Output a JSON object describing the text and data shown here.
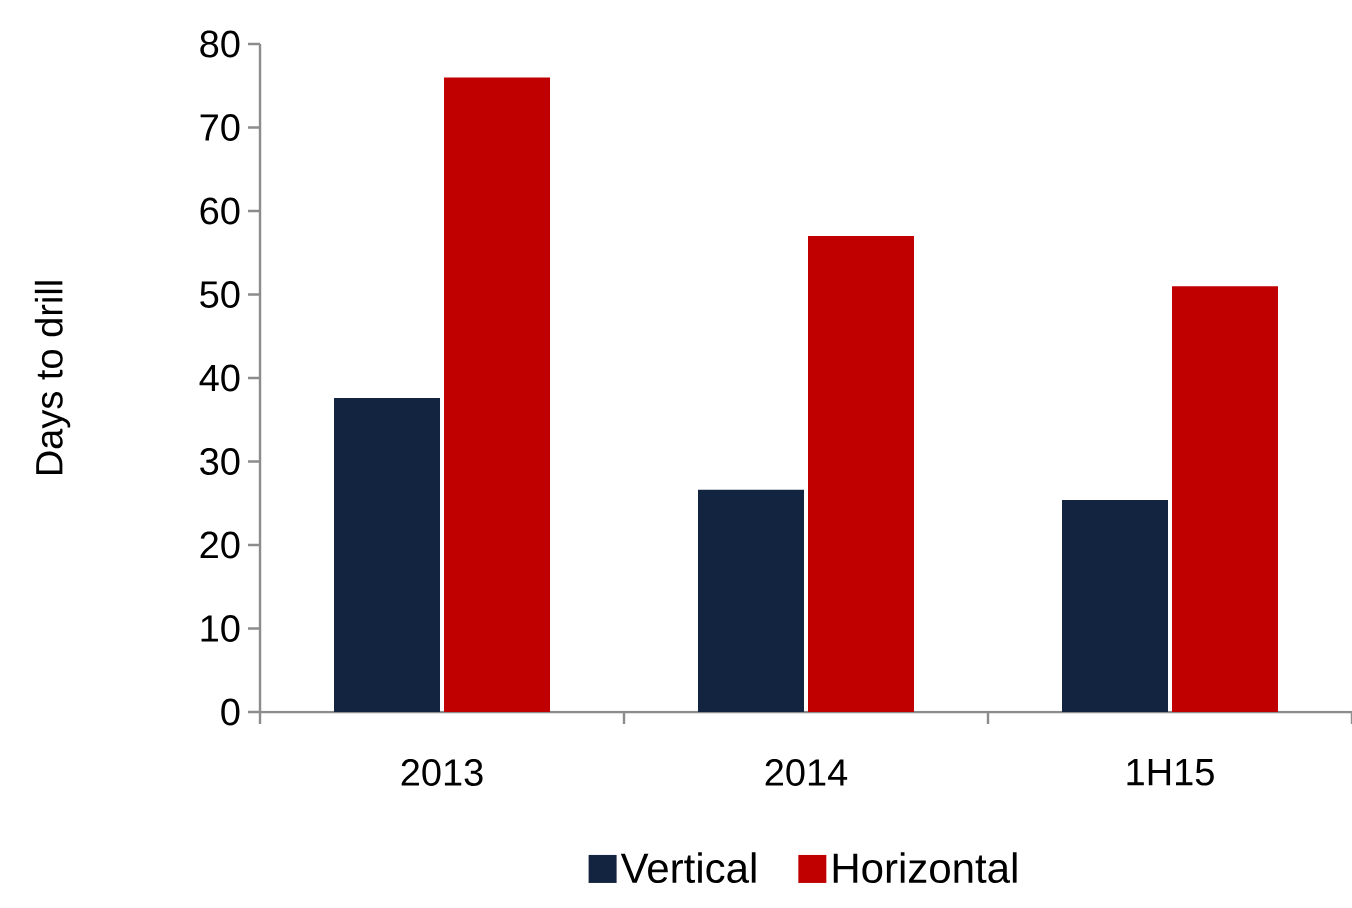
{
  "chart_data": {
    "type": "bar",
    "ylabel": "Days to drill",
    "categories": [
      "2013",
      "2014",
      "1H15"
    ],
    "series": [
      {
        "name": "Vertical",
        "color": "#12243f",
        "values": [
          37.6,
          26.6,
          25.4
        ]
      },
      {
        "name": "Horizontal",
        "color": "#c00000",
        "values": [
          76,
          57,
          51
        ]
      }
    ],
    "ylim": [
      0,
      80
    ],
    "yticks": [
      0,
      10,
      20,
      30,
      40,
      50,
      60,
      70,
      80
    ],
    "legend": "bottom"
  }
}
